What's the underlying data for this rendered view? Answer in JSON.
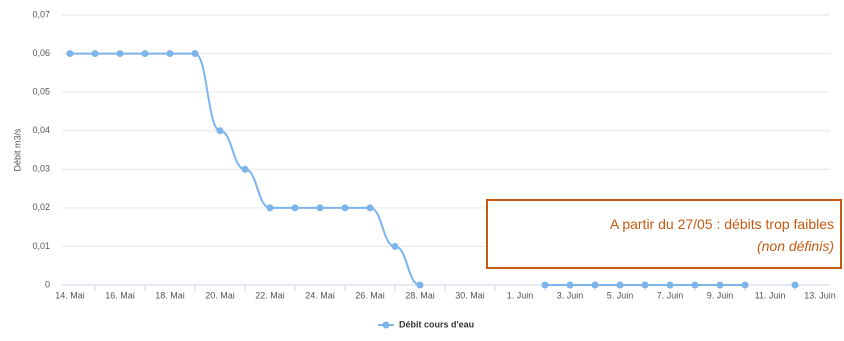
{
  "chart_data": {
    "type": "line",
    "y_label": "Débit  m3/s",
    "categories": [
      "14. Mai",
      null,
      "16. Mai",
      null,
      "18. Mai",
      null,
      "20. Mai",
      null,
      "22. Mai",
      null,
      "24. Mai",
      null,
      "26. Mai",
      null,
      "28. Mai",
      null,
      "30. Mai",
      null,
      "1. Juin",
      null,
      "3. Juin",
      null,
      "5. Juin",
      null,
      "7. Juin",
      null,
      "9. Juin",
      null,
      "11. Juin",
      null,
      "13. Juin"
    ],
    "series": [
      {
        "name": "Débit cours d'eau",
        "color": "#7cb5ec",
        "values": [
          0.06,
          0.06,
          0.06,
          0.06,
          0.06,
          0.06,
          0.04,
          0.03,
          0.02,
          0.02,
          0.02,
          0.02,
          0.02,
          0.01,
          0,
          null,
          null,
          null,
          null,
          0,
          0,
          0,
          0,
          0,
          0,
          0,
          0,
          0,
          null,
          0,
          null
        ]
      }
    ],
    "ylim": [
      0,
      0.07
    ],
    "yticks": [
      0,
      {
        "value": 0.01,
        "label": "0,01"
      },
      {
        "value": 0.02,
        "label": "0,02"
      },
      {
        "value": 0.03,
        "label": "0,03"
      },
      {
        "value": 0.04,
        "label": "0,04"
      },
      {
        "value": 0.05,
        "label": "0,05"
      },
      {
        "value": 0.06,
        "label": "0,06"
      },
      {
        "value": 0.07,
        "label": "0,07"
      }
    ],
    "grid": true,
    "annotation": {
      "line1": "A partir du 27/05 : débits trop faibles",
      "line2": "(non définis)"
    }
  }
}
